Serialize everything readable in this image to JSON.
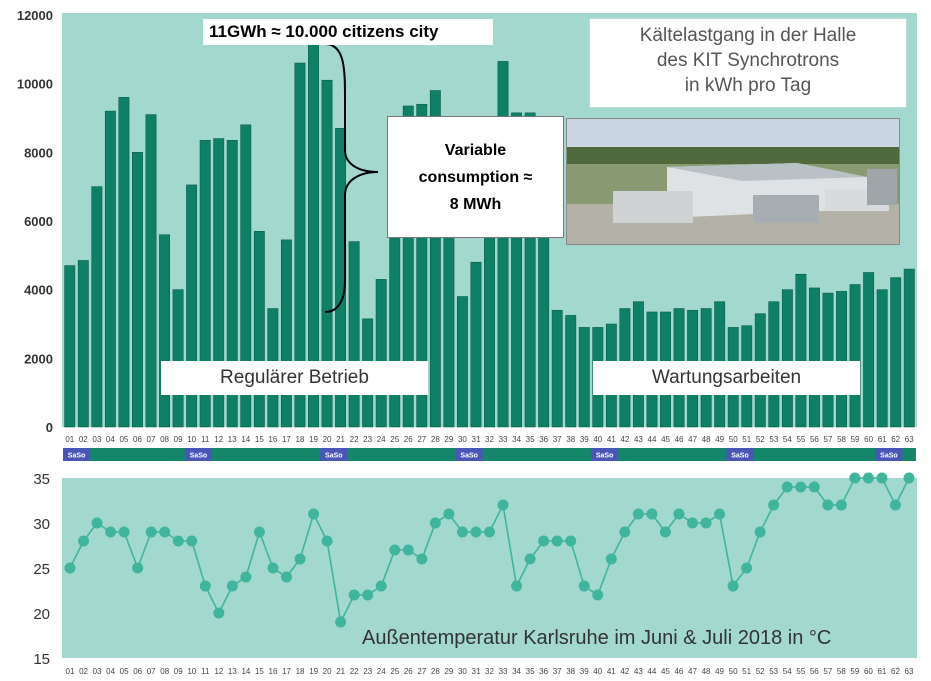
{
  "chart_data": [
    {
      "type": "bar",
      "categories": [
        "01",
        "02",
        "03",
        "04",
        "05",
        "06",
        "07",
        "08",
        "09",
        "10",
        "11",
        "12",
        "13",
        "14",
        "15",
        "16",
        "17",
        "18",
        "19",
        "20",
        "21",
        "22",
        "23",
        "24",
        "25",
        "26",
        "27",
        "28",
        "29",
        "30",
        "31",
        "32",
        "33",
        "34",
        "35",
        "36",
        "37",
        "38",
        "39",
        "40",
        "41",
        "42",
        "43",
        "44",
        "45",
        "46",
        "47",
        "48",
        "49",
        "50",
        "51",
        "52",
        "53",
        "54",
        "55",
        "56",
        "57",
        "58",
        "59",
        "60",
        "61",
        "62",
        "63"
      ],
      "values": [
        4700,
        4850,
        7000,
        9200,
        9600,
        8000,
        9100,
        5600,
        4000,
        7050,
        8350,
        8400,
        8350,
        8800,
        5700,
        3450,
        5450,
        10600,
        11200,
        10100,
        8700,
        5400,
        3150,
        4300,
        6200,
        9350,
        9400,
        9800,
        7000,
        3800,
        4800,
        7500,
        10650,
        9150,
        9150,
        6400,
        3400,
        3250,
        2900,
        2900,
        3000,
        3450,
        3650,
        3350,
        3350,
        3450,
        3400,
        3450,
        3650,
        2900,
        2950,
        3300,
        3650,
        4000,
        4450,
        4050,
        3900,
        3950,
        4150,
        4500,
        4000,
        4350,
        4600
      ],
      "ylim": [
        0,
        12000
      ],
      "yticks": [
        0,
        2000,
        4000,
        6000,
        8000,
        10000,
        12000
      ],
      "title_lines": [
        "Kältelastgang in der Halle",
        "des KIT Synchrotrons",
        "in kWh pro Tag"
      ],
      "annotation_top": "11GWh ≈ 10.000 citizens city",
      "annotation_variable": [
        "Variable",
        "consumption ≈",
        "8 MWh"
      ],
      "label_regular": "Regulärer Betrieb",
      "label_maintenance": "Wartungsarbeiten",
      "weekend_label": "SaSo",
      "weekend_indices": [
        0,
        9,
        19,
        29,
        39,
        49,
        59,
        69,
        79
      ],
      "grid": false,
      "colors": {
        "bar": "#0e8068",
        "bar_edge": "#0a5e4c",
        "background": "#a2d8ce",
        "weekend": "#4a55b8",
        "strip": "#14876b"
      }
    },
    {
      "type": "line",
      "x": [
        "01",
        "02",
        "03",
        "04",
        "05",
        "06",
        "07",
        "08",
        "09",
        "10",
        "11",
        "12",
        "13",
        "14",
        "15",
        "16",
        "17",
        "18",
        "19",
        "20",
        "21",
        "22",
        "23",
        "24",
        "25",
        "26",
        "27",
        "28",
        "29",
        "30",
        "31",
        "32",
        "33",
        "34",
        "35",
        "36",
        "37",
        "38",
        "39",
        "40",
        "41",
        "42",
        "43",
        "44",
        "45",
        "46",
        "47",
        "48",
        "49",
        "50",
        "51",
        "52",
        "53",
        "54",
        "55",
        "56",
        "57",
        "58",
        "59",
        "60",
        "61",
        "62",
        "63"
      ],
      "values": [
        25,
        28,
        30,
        29,
        29,
        25,
        29,
        29,
        28,
        28,
        23,
        20,
        23,
        24,
        29,
        25,
        24,
        26,
        31,
        28,
        19,
        22,
        22,
        23,
        27,
        27,
        26,
        30,
        31,
        29,
        29,
        29,
        32,
        23,
        26,
        28,
        28,
        28,
        23,
        22,
        26,
        29,
        31,
        31,
        29,
        31,
        30,
        30,
        31,
        23,
        25,
        29,
        32,
        34,
        34,
        34,
        32,
        32,
        35,
        35,
        35,
        32,
        35
      ],
      "ylim": [
        15,
        35
      ],
      "yticks": [
        15,
        20,
        25,
        30,
        35
      ],
      "title": "Außentemperatur Karlsruhe im Juni & Juli 2018 in °C",
      "grid": false,
      "colors": {
        "line": "#3fb59d",
        "marker": "#3fb59d",
        "background": "#a2d8ce"
      }
    }
  ]
}
